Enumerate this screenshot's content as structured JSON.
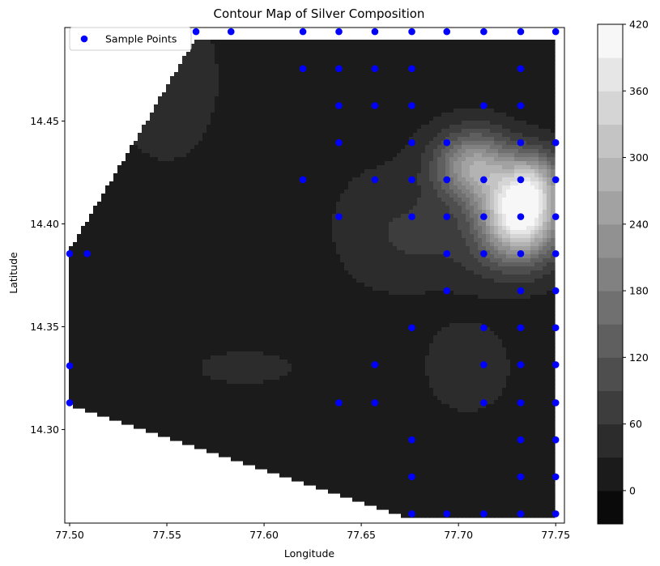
{
  "chart_data": {
    "type": "contour",
    "title": "Contour Map of Silver Composition",
    "xlabel": "Longitude",
    "ylabel": "Latitude",
    "xlim": [
      77.4975,
      77.7545
    ],
    "ylim": [
      14.2545,
      14.4955
    ],
    "xticks": [
      77.5,
      77.55,
      77.6,
      77.65,
      77.7,
      77.75
    ],
    "yticks": [
      14.3,
      14.35,
      14.4,
      14.45
    ],
    "colorbar": {
      "levels": [
        -30,
        0,
        30,
        60,
        90,
        120,
        150,
        180,
        210,
        240,
        270,
        300,
        330,
        360,
        390,
        420
      ],
      "tick_values": [
        0,
        60,
        120,
        180,
        240,
        300,
        360,
        420
      ],
      "colormap": "gray"
    },
    "legend": {
      "label": "Sample Points",
      "placement": "upper-left"
    },
    "marker_color": "#0000ff",
    "domain_polygon": [
      [
        77.5,
        14.3875
      ],
      [
        77.565,
        14.4905
      ],
      [
        77.75,
        14.4905
      ],
      [
        77.75,
        14.2565
      ],
      [
        77.676,
        14.2565
      ],
      [
        77.5,
        14.312
      ]
    ],
    "hotspots": [
      {
        "lon": 77.732,
        "lat": 14.405,
        "value": 420,
        "sx": 0.014,
        "sy": 0.014
      },
      {
        "lon": 77.708,
        "lat": 14.428,
        "value": 250,
        "sx": 0.014,
        "sy": 0.012
      },
      {
        "lon": 77.74,
        "lat": 14.423,
        "value": 160,
        "sx": 0.01,
        "sy": 0.01
      },
      {
        "lon": 77.725,
        "lat": 14.385,
        "value": 60,
        "sx": 0.02,
        "sy": 0.012
      },
      {
        "lon": 77.68,
        "lat": 14.395,
        "value": 50,
        "sx": 0.02,
        "sy": 0.015
      },
      {
        "lon": 77.705,
        "lat": 14.33,
        "value": 55,
        "sx": 0.015,
        "sy": 0.015
      },
      {
        "lon": 77.59,
        "lat": 14.33,
        "value": 35,
        "sx": 0.03,
        "sy": 0.01
      },
      {
        "lon": 77.66,
        "lat": 14.4,
        "value": 35,
        "sx": 0.025,
        "sy": 0.03
      },
      {
        "lon": 77.55,
        "lat": 14.47,
        "value": 50,
        "sx": 0.02,
        "sy": 0.03
      }
    ],
    "points": [
      [
        77.5,
        14.3855
      ],
      [
        77.509,
        14.3855
      ],
      [
        77.5,
        14.331
      ],
      [
        77.5,
        14.313
      ],
      [
        77.565,
        14.4935
      ],
      [
        77.583,
        14.4935
      ],
      [
        77.62,
        14.4935
      ],
      [
        77.6385,
        14.4935
      ],
      [
        77.657,
        14.4935
      ],
      [
        77.676,
        14.4935
      ],
      [
        77.694,
        14.4935
      ],
      [
        77.713,
        14.4935
      ],
      [
        77.732,
        14.4935
      ],
      [
        77.75,
        14.4935
      ],
      [
        77.62,
        14.4755
      ],
      [
        77.6385,
        14.4755
      ],
      [
        77.657,
        14.4755
      ],
      [
        77.676,
        14.4755
      ],
      [
        77.732,
        14.4755
      ],
      [
        77.6385,
        14.4575
      ],
      [
        77.657,
        14.4575
      ],
      [
        77.676,
        14.4575
      ],
      [
        77.713,
        14.4575
      ],
      [
        77.732,
        14.4575
      ],
      [
        77.6385,
        14.4395
      ],
      [
        77.676,
        14.4395
      ],
      [
        77.694,
        14.4395
      ],
      [
        77.732,
        14.4395
      ],
      [
        77.75,
        14.4395
      ],
      [
        77.62,
        14.4215
      ],
      [
        77.657,
        14.4215
      ],
      [
        77.676,
        14.4215
      ],
      [
        77.694,
        14.4215
      ],
      [
        77.713,
        14.4215
      ],
      [
        77.732,
        14.4215
      ],
      [
        77.75,
        14.4215
      ],
      [
        77.6385,
        14.4035
      ],
      [
        77.676,
        14.4035
      ],
      [
        77.694,
        14.4035
      ],
      [
        77.713,
        14.4035
      ],
      [
        77.732,
        14.4035
      ],
      [
        77.75,
        14.4035
      ],
      [
        77.694,
        14.3855
      ],
      [
        77.713,
        14.3855
      ],
      [
        77.732,
        14.3855
      ],
      [
        77.75,
        14.3855
      ],
      [
        77.694,
        14.3675
      ],
      [
        77.732,
        14.3675
      ],
      [
        77.75,
        14.3675
      ],
      [
        77.676,
        14.3495
      ],
      [
        77.713,
        14.3495
      ],
      [
        77.732,
        14.3495
      ],
      [
        77.75,
        14.3495
      ],
      [
        77.657,
        14.3315
      ],
      [
        77.713,
        14.3315
      ],
      [
        77.732,
        14.3315
      ],
      [
        77.75,
        14.3315
      ],
      [
        77.6385,
        14.313
      ],
      [
        77.657,
        14.313
      ],
      [
        77.713,
        14.313
      ],
      [
        77.732,
        14.313
      ],
      [
        77.75,
        14.313
      ],
      [
        77.676,
        14.295
      ],
      [
        77.732,
        14.295
      ],
      [
        77.75,
        14.295
      ],
      [
        77.676,
        14.277
      ],
      [
        77.732,
        14.277
      ],
      [
        77.75,
        14.277
      ],
      [
        77.676,
        14.259
      ],
      [
        77.694,
        14.259
      ],
      [
        77.713,
        14.259
      ],
      [
        77.732,
        14.259
      ],
      [
        77.75,
        14.259
      ]
    ]
  }
}
